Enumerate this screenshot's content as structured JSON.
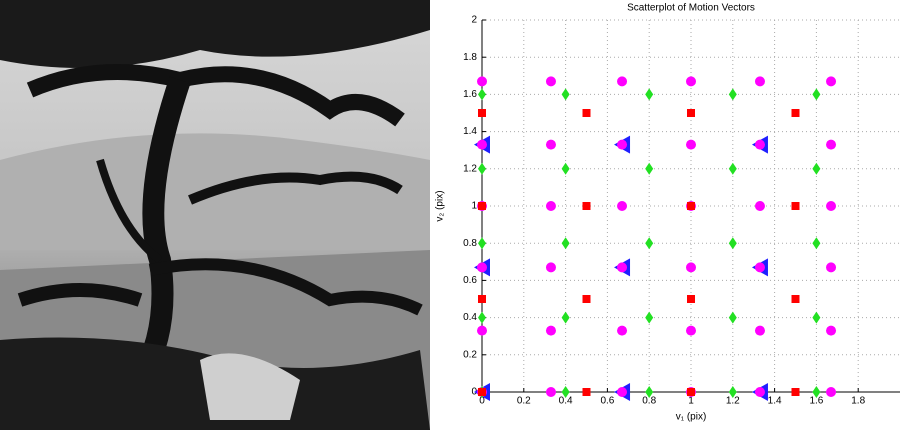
{
  "chart_data": {
    "type": "scatter",
    "title": "Scatterplot of Motion Vectors",
    "xlabel": "v₁ (pix)",
    "ylabel": "v₂ (pix)",
    "xlim": [
      0,
      2
    ],
    "ylim": [
      0,
      2
    ],
    "xticks": [
      0,
      0.2,
      0.4,
      0.6,
      0.8,
      1,
      1.2,
      1.4,
      1.6,
      1.8
    ],
    "yticks": [
      0,
      0.2,
      0.4,
      0.6,
      0.8,
      1,
      1.2,
      1.4,
      1.6,
      1.8,
      2
    ],
    "grid": true,
    "series": [
      {
        "marker": "triangle",
        "color": "#1f1fff",
        "x": [
          0,
          0.67,
          1.33,
          0,
          0.67,
          1.33,
          0,
          0.67,
          1.33
        ],
        "values": [
          0,
          0,
          0,
          0.67,
          0.67,
          0.67,
          1.33,
          1.33,
          1.33
        ]
      },
      {
        "marker": "circle",
        "color": "#ff00ff",
        "x": [
          0,
          0.33,
          0.67,
          1,
          1.33,
          1.67,
          0,
          0.33,
          0.67,
          1,
          1.33,
          1.67,
          0,
          0.33,
          0.67,
          1,
          1.33,
          1.67,
          0,
          0.33,
          0.67,
          1,
          1.33,
          1.67,
          0,
          0.33,
          0.67,
          1,
          1.33,
          1.67,
          0,
          0.33,
          0.67,
          1,
          1.33,
          1.67
        ],
        "values": [
          0,
          0,
          0,
          0,
          0,
          0,
          0.33,
          0.33,
          0.33,
          0.33,
          0.33,
          0.33,
          0.67,
          0.67,
          0.67,
          0.67,
          0.67,
          0.67,
          1,
          1,
          1,
          1,
          1,
          1,
          1.33,
          1.33,
          1.33,
          1.33,
          1.33,
          1.33,
          1.67,
          1.67,
          1.67,
          1.67,
          1.67,
          1.67
        ]
      },
      {
        "marker": "diamond",
        "color": "#22e022",
        "x": [
          0,
          0.4,
          0.8,
          1.2,
          1.6,
          0,
          0.4,
          0.8,
          1.2,
          1.6,
          0,
          0.4,
          0.8,
          1.2,
          1.6,
          0,
          0.4,
          0.8,
          1.2,
          1.6,
          0,
          0.4,
          0.8,
          1.2,
          1.6
        ],
        "values": [
          0,
          0,
          0,
          0,
          0,
          0.4,
          0.4,
          0.4,
          0.4,
          0.4,
          0.8,
          0.8,
          0.8,
          0.8,
          0.8,
          1.2,
          1.2,
          1.2,
          1.2,
          1.2,
          1.6,
          1.6,
          1.6,
          1.6,
          1.6
        ]
      },
      {
        "marker": "square",
        "color": "#ff0000",
        "x": [
          0,
          0.5,
          1,
          1.5,
          0,
          0.5,
          1,
          1.5,
          0,
          0.5,
          1,
          1.5,
          0,
          0.5,
          1,
          1.5
        ],
        "values": [
          0,
          0,
          0,
          0,
          0.5,
          0.5,
          0.5,
          0.5,
          1,
          1,
          1,
          1,
          1.5,
          1.5,
          1.5,
          1.5
        ]
      }
    ]
  }
}
